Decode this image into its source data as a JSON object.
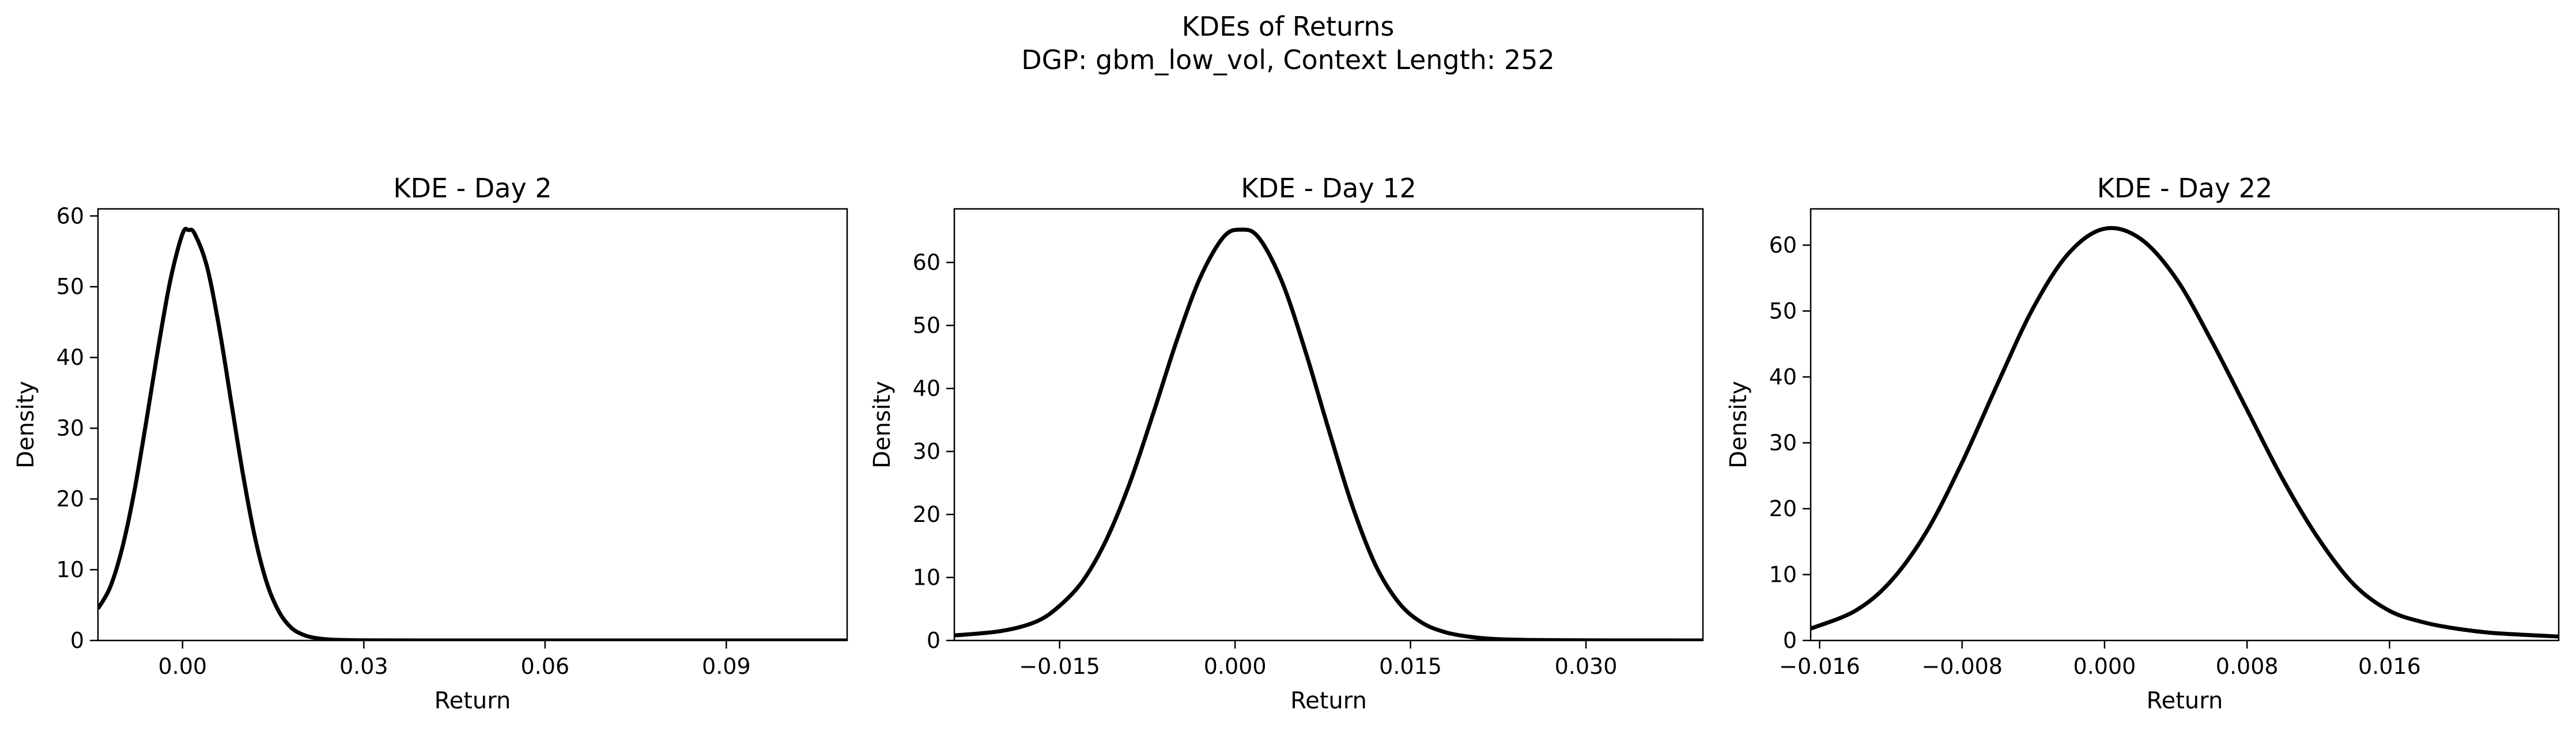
{
  "figure": {
    "title_line1": "KDEs of Returns",
    "title_line2": "DGP: gbm_low_vol, Context Length: 252"
  },
  "chart_data": [
    {
      "type": "line",
      "title": "KDE - Day 2",
      "xlabel": "Return",
      "ylabel": "Density",
      "xlim": [
        -0.014,
        0.11
      ],
      "ylim": [
        0,
        61
      ],
      "xticks": [
        0.0,
        0.03,
        0.06,
        0.09
      ],
      "xtick_labels": [
        "0.00",
        "0.03",
        "0.06",
        "0.09"
      ],
      "yticks": [
        0,
        10,
        20,
        30,
        40,
        50,
        60
      ],
      "ytick_labels": [
        "0",
        "10",
        "20",
        "30",
        "40",
        "50",
        "60"
      ],
      "grid": false,
      "color": "#000000",
      "x": [
        -0.014,
        -0.012,
        -0.01,
        -0.008,
        -0.006,
        -0.004,
        -0.002,
        0.0,
        0.001,
        0.002,
        0.004,
        0.006,
        0.008,
        0.01,
        0.012,
        0.014,
        0.016,
        0.018,
        0.02,
        0.022,
        0.025,
        0.03,
        0.04,
        0.06,
        0.08,
        0.1,
        0.11
      ],
      "y": [
        4.5,
        7.5,
        13.0,
        21.0,
        31.0,
        41.5,
        51.0,
        57.5,
        58.0,
        57.5,
        53.0,
        44.5,
        34.0,
        23.5,
        14.5,
        8.0,
        4.0,
        1.8,
        0.8,
        0.35,
        0.1,
        0.02,
        0.0,
        0.0,
        0.0,
        0.0,
        0.0
      ]
    },
    {
      "type": "line",
      "title": "KDE - Day 12",
      "xlabel": "Return",
      "ylabel": "Density",
      "xlim": [
        -0.024,
        0.04
      ],
      "ylim": [
        0,
        68.5
      ],
      "xticks": [
        -0.015,
        0.0,
        0.015,
        0.03
      ],
      "xtick_labels": [
        "−0.015",
        "0.000",
        "0.015",
        "0.030"
      ],
      "yticks": [
        0,
        10,
        20,
        30,
        40,
        50,
        60
      ],
      "ytick_labels": [
        "0",
        "10",
        "20",
        "30",
        "40",
        "50",
        "60"
      ],
      "grid": false,
      "color": "#000000",
      "x": [
        -0.024,
        -0.02,
        -0.017,
        -0.015,
        -0.013,
        -0.011,
        -0.009,
        -0.007,
        -0.005,
        -0.003,
        -0.001,
        0.0005,
        0.002,
        0.004,
        0.006,
        0.008,
        0.01,
        0.012,
        0.014,
        0.016,
        0.018,
        0.02,
        0.022,
        0.025,
        0.03,
        0.035,
        0.04
      ],
      "y": [
        0.8,
        1.5,
        3.0,
        5.5,
        9.5,
        16.0,
        25.0,
        36.0,
        47.5,
        57.5,
        64.0,
        65.2,
        64.0,
        57.0,
        46.0,
        33.5,
        21.5,
        12.0,
        6.0,
        2.8,
        1.3,
        0.6,
        0.25,
        0.08,
        0.02,
        0.01,
        0.0
      ]
    },
    {
      "type": "line",
      "title": "KDE - Day 22",
      "xlabel": "Return",
      "ylabel": "Density",
      "xlim": [
        -0.0165,
        0.0255
      ],
      "ylim": [
        0,
        65.5
      ],
      "xticks": [
        -0.016,
        -0.008,
        0.0,
        0.008,
        0.016
      ],
      "xtick_labels": [
        "−0.016",
        "−0.008",
        "0.000",
        "0.008",
        "0.016"
      ],
      "yticks": [
        0,
        10,
        20,
        30,
        40,
        50,
        60
      ],
      "ytick_labels": [
        "0",
        "10",
        "20",
        "30",
        "40",
        "50",
        "60"
      ],
      "grid": false,
      "color": "#000000",
      "x": [
        -0.0165,
        -0.014,
        -0.012,
        -0.01,
        -0.008,
        -0.006,
        -0.004,
        -0.002,
        0.0,
        0.002,
        0.004,
        0.006,
        0.008,
        0.01,
        0.012,
        0.014,
        0.016,
        0.018,
        0.02,
        0.022,
        0.0255
      ],
      "y": [
        1.8,
        4.5,
        9.0,
        16.5,
        27.0,
        39.0,
        50.5,
        58.8,
        62.5,
        61.0,
        55.0,
        45.5,
        35.0,
        24.5,
        15.5,
        8.5,
        4.5,
        2.7,
        1.7,
        1.1,
        0.6
      ]
    }
  ]
}
